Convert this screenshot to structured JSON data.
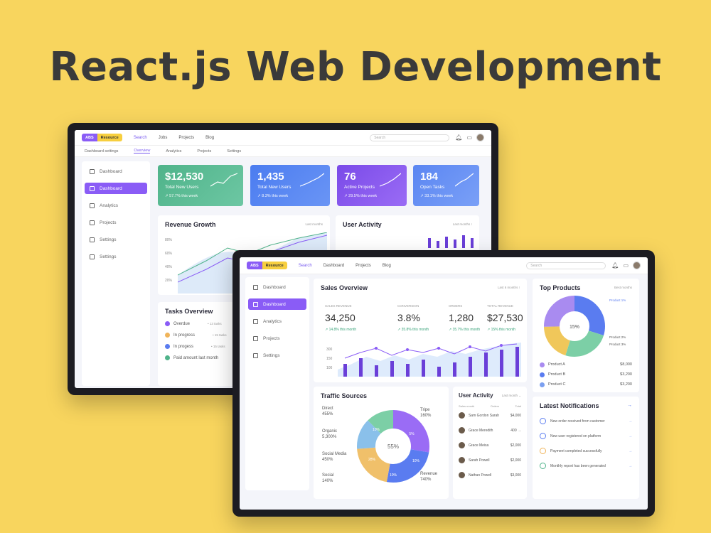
{
  "headline": "React.js Web Development",
  "colors": {
    "background": "#F8D55E",
    "accent": "#8a5cf6",
    "blue": "#5a7cf0",
    "green": "#4fb38a",
    "orange": "#f0b45a"
  },
  "back": {
    "logo": [
      "ABS",
      "Resource"
    ],
    "nav": [
      "Search",
      "Jobs",
      "Projects",
      "Blog"
    ],
    "search_placeholder": "Search",
    "subnav": [
      "Dashboard settings",
      "Overview",
      "Analytics",
      "Projects",
      "Settings"
    ],
    "sidebar": [
      "Dashboard",
      "Dashboard",
      "Analytics",
      "Projects",
      "Settings",
      "Settings"
    ],
    "stats": [
      {
        "value": "$12,530",
        "label": "Total New Users",
        "change": "↗ 57.7% this week"
      },
      {
        "value": "1,435",
        "label": "Total New Users",
        "change": "↗ 8.3% this week"
      },
      {
        "value": "76",
        "label": "Active Projects",
        "change": "↗ 29.5% this week"
      },
      {
        "value": "184",
        "label": "Open Tasks",
        "change": "↗ 33.1% this week"
      }
    ],
    "revenue": {
      "title": "Revenue Growth",
      "sub": "Last months",
      "yticks": [
        "80%",
        "60%",
        "40%",
        "20%"
      ]
    },
    "user_activity": {
      "title": "User Activity",
      "sub": "Last months  ⁝"
    },
    "tasks": {
      "title": "Tasks Overview",
      "items": [
        {
          "label": "Overdue",
          "meta": "• 13 tasks"
        },
        {
          "label": "In progress",
          "meta": "• 15 tasks"
        },
        {
          "label": "In progess",
          "meta": "• 15 tasks"
        },
        {
          "label": "Paid amount last month",
          "meta": ""
        }
      ]
    }
  },
  "front": {
    "logo": [
      "ABS",
      "Resource"
    ],
    "nav": [
      "Search",
      "Dashboard",
      "Projects",
      "Blog"
    ],
    "search_placeholder": "Search",
    "sidebar": [
      "Dashboard",
      "Dashboard",
      "Analytics",
      "Projects",
      "Settings"
    ],
    "sales": {
      "title": "Sales Overview",
      "sub": "Last 6 months  ⁝",
      "metrics": [
        {
          "label": "SALES REVENUE",
          "value": "34,250",
          "change": "↗ 14.8% this month"
        },
        {
          "label": "CONVERSION",
          "value": "3.8%",
          "change": "↗ 35.8% this month"
        },
        {
          "label": "ORDERS",
          "value": "1,280",
          "change": "↗ 35.7% this month"
        },
        {
          "label": "TOTAL REVENUE",
          "value": "$27,530",
          "change": "↗ 15% this month"
        }
      ],
      "yticks": [
        "300",
        "150",
        "100"
      ]
    },
    "top_products": {
      "title": "Top Products",
      "sub": "Best months",
      "center": "15%",
      "right_labels": [
        "Product 1%",
        "Product 2%",
        "Product 3%"
      ],
      "items": [
        {
          "label": "Product A",
          "value": "$8,000"
        },
        {
          "label": "Product B",
          "value": "$3,200"
        },
        {
          "label": "Product C",
          "value": "$3,200"
        }
      ]
    },
    "traffic": {
      "title": "Traffic Sources",
      "center": "55%",
      "left": [
        {
          "name": "Direct",
          "value": "455%"
        },
        {
          "name": "Organic",
          "value": "5,300%"
        },
        {
          "name": "Social Media",
          "value": "450%"
        },
        {
          "name": "Social",
          "value": "140%"
        }
      ],
      "right": [
        {
          "name": "Tripe",
          "value": "160%"
        },
        {
          "name": "Revenue",
          "value": "740%"
        }
      ],
      "slices": [
        "5%",
        "10%",
        "10%",
        "28%",
        "10%"
      ]
    },
    "user_activity": {
      "title": "User Activity",
      "sub": "Last month  ⌄",
      "headers": [
        "Sales month",
        "Orders",
        "Total"
      ],
      "rows": [
        {
          "name": "Sam Gordon Sarah",
          "amt": "$4,000"
        },
        {
          "name": "Grace Meredith",
          "amt": "400 →"
        },
        {
          "name": "Grace Meisa",
          "amt": "$2,000"
        },
        {
          "name": "Sarah Powell",
          "amt": "$2,000"
        },
        {
          "name": "Nathan Powell",
          "amt": "$3,000"
        }
      ]
    },
    "notifications": {
      "title": "Latest Notifications",
      "items": [
        "New order received from customer",
        "New user registered on platform",
        "Payment completed successfully",
        "Monthly report has been generated"
      ]
    }
  }
}
